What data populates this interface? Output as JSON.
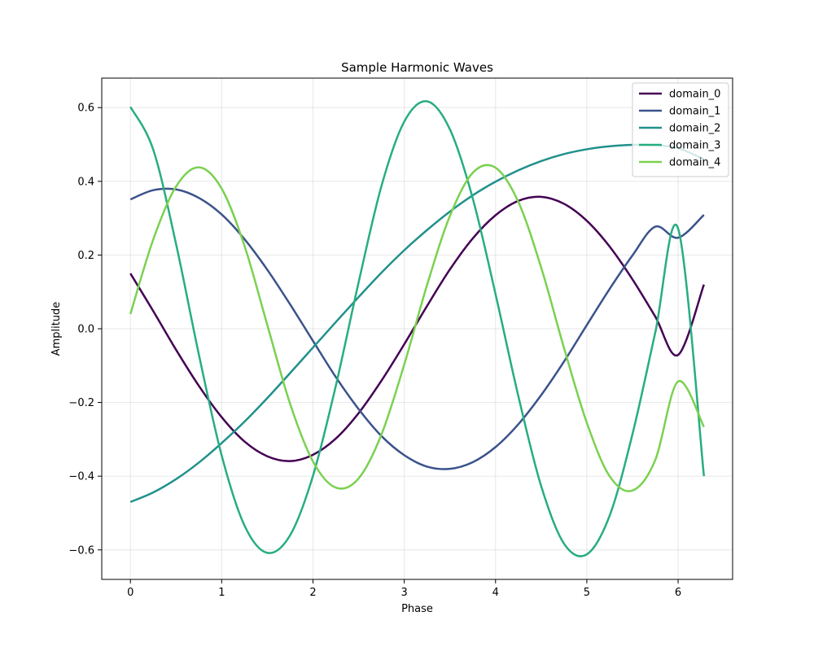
{
  "chart_data": {
    "type": "line",
    "title": "Sample Harmonic Waves",
    "xlabel": "Phase",
    "ylabel": "Amplitude",
    "xlim": [
      -0.314,
      6.597
    ],
    "ylim": [
      -0.68,
      0.68
    ],
    "xticks": [
      0,
      1,
      2,
      3,
      4,
      5,
      6
    ],
    "xtick_labels": [
      "0",
      "1",
      "2",
      "3",
      "4",
      "5",
      "6"
    ],
    "yticks": [
      -0.6,
      -0.4,
      -0.2,
      0.0,
      0.2,
      0.4,
      0.6
    ],
    "ytick_labels": [
      "−0.6",
      "−0.4",
      "−0.2",
      "0.0",
      "0.2",
      "0.4",
      "0.6"
    ],
    "grid": true,
    "legend_position": "top-right",
    "x": [
      0,
      0.25,
      0.5,
      0.75,
      1,
      1.25,
      1.5,
      1.75,
      2,
      2.25,
      2.5,
      2.75,
      3,
      3.25,
      3.5,
      3.75,
      4,
      4.25,
      4.5,
      4.75,
      5,
      5.25,
      5.5,
      5.75,
      6,
      6.283
    ],
    "series": [
      {
        "name": "domain_0",
        "color": "#440154",
        "values": [
          0.15,
          0.048,
          -0.057,
          -0.155,
          -0.24,
          -0.306,
          -0.346,
          -0.359,
          -0.342,
          -0.298,
          -0.229,
          -0.141,
          -0.042,
          0.062,
          0.161,
          0.245,
          0.308,
          0.347,
          0.358,
          0.339,
          0.293,
          0.223,
          0.134,
          0.033,
          -0.071,
          0.12
        ]
      },
      {
        "name": "domain_1",
        "color": "#3b528b",
        "values": [
          0.351,
          0.376,
          0.378,
          0.355,
          0.31,
          0.243,
          0.16,
          0.066,
          -0.033,
          -0.131,
          -0.218,
          -0.291,
          -0.343,
          -0.374,
          -0.38,
          -0.362,
          -0.321,
          -0.259,
          -0.18,
          -0.089,
          0.01,
          0.108,
          0.199,
          0.277,
          0.247,
          0.309
        ]
      },
      {
        "name": "domain_2",
        "color": "#21918c",
        "values": [
          -0.47,
          -0.444,
          -0.408,
          -0.363,
          -0.31,
          -0.252,
          -0.188,
          -0.12,
          -0.051,
          0.018,
          0.086,
          0.152,
          0.213,
          0.268,
          0.318,
          0.362,
          0.399,
          0.43,
          0.455,
          0.474,
          0.487,
          0.495,
          0.499,
          0.498,
          0.49,
          0.46
        ]
      },
      {
        "name": "domain_3",
        "color": "#27ad81",
        "values": [
          0.602,
          0.486,
          0.23,
          -0.07,
          -0.344,
          -0.534,
          -0.608,
          -0.56,
          -0.399,
          -0.155,
          0.126,
          0.387,
          0.562,
          0.617,
          0.541,
          0.354,
          0.094,
          -0.183,
          -0.427,
          -0.583,
          -0.612,
          -0.507,
          -0.286,
          -0.01,
          0.272,
          -0.4
        ]
      },
      {
        "name": "domain_4",
        "color": "#7ad151",
        "values": [
          0.04,
          0.242,
          0.386,
          0.438,
          0.38,
          0.225,
          0.01,
          -0.204,
          -0.36,
          -0.431,
          -0.406,
          -0.287,
          -0.097,
          0.119,
          0.306,
          0.423,
          0.437,
          0.344,
          0.166,
          -0.052,
          -0.255,
          -0.4,
          -0.439,
          -0.356,
          -0.143,
          -0.266
        ]
      }
    ]
  }
}
